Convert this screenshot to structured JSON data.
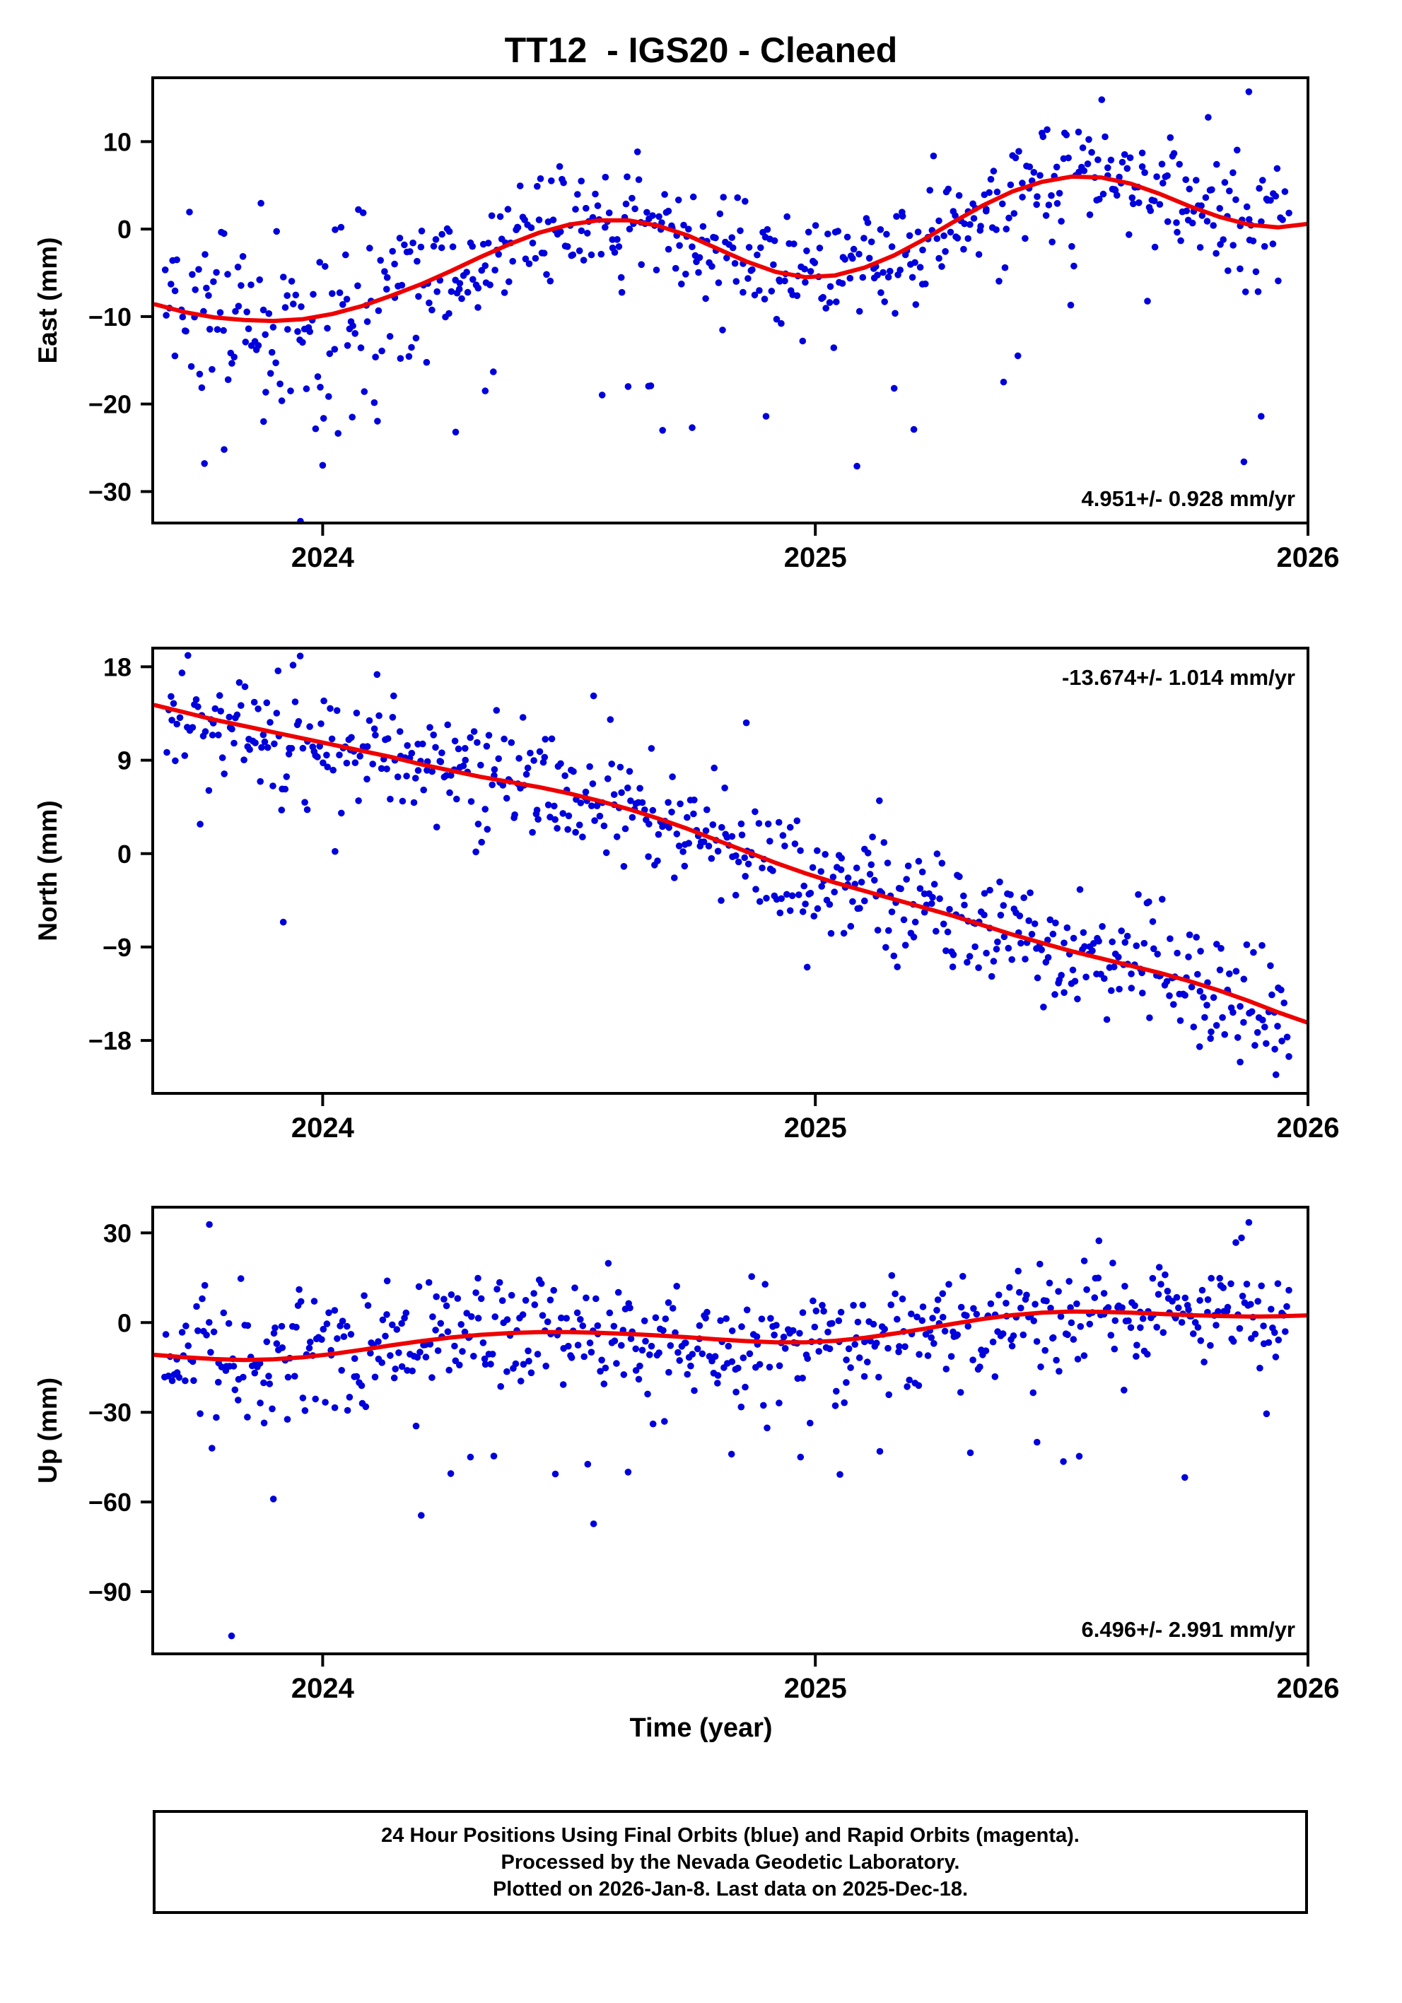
{
  "title": "TT12  - IGS20 - Cleaned",
  "xlabel": "Time (year)",
  "footer": {
    "line1": "24 Hour Positions Using Final Orbits (blue) and Rapid Orbits (magenta).",
    "line2": "Processed by the Nevada Geodetic Laboratory.",
    "line3": "Plotted on 2026-Jan-8. Last data on 2025-Dec-18."
  },
  "colors": {
    "points": "#0000dd",
    "trend": "#ee0000",
    "frame": "#000000",
    "background": "#ffffff"
  },
  "chart_data": [
    {
      "type": "scatter",
      "name": "east",
      "ylabel": "East (mm)",
      "slope_label": "4.951+/- 0.928 mm/yr",
      "annot_pos": "bottom",
      "xlim": [
        2023.655,
        2026.0
      ],
      "ylim": [
        -33.6,
        17.3
      ],
      "xticks": [
        2024,
        2025,
        2026
      ],
      "xtick_labels": [
        "2024",
        "2025",
        "2026"
      ],
      "yticks": [
        -30,
        -20,
        -10,
        0,
        10
      ],
      "ytick_labels": [
        "−30",
        "−20",
        "−10",
        "0",
        "10"
      ],
      "grid": false,
      "trend": {
        "x": [
          2023.66,
          2023.72,
          2023.78,
          2023.84,
          2023.9,
          2023.96,
          2024.02,
          2024.08,
          2024.14,
          2024.2,
          2024.26,
          2024.32,
          2024.38,
          2024.44,
          2024.5,
          2024.56,
          2024.62,
          2024.68,
          2024.74,
          2024.8,
          2024.86,
          2024.92,
          2024.98,
          2025.04,
          2025.1,
          2025.16,
          2025.22,
          2025.28,
          2025.34,
          2025.4,
          2025.46,
          2025.52,
          2025.58,
          2025.64,
          2025.7,
          2025.76,
          2025.82,
          2025.88,
          2025.94,
          2026.0
        ],
        "y": [
          -8.6,
          -9.5,
          -10.1,
          -10.4,
          -10.5,
          -10.3,
          -9.7,
          -8.8,
          -7.6,
          -6.3,
          -4.8,
          -3.2,
          -1.7,
          -0.4,
          0.5,
          1.0,
          1.0,
          0.4,
          -0.7,
          -2.2,
          -3.7,
          -4.9,
          -5.5,
          -5.3,
          -4.4,
          -3.0,
          -1.2,
          0.8,
          2.7,
          4.3,
          5.4,
          6.0,
          5.9,
          5.2,
          4.0,
          2.6,
          1.4,
          0.5,
          0.2,
          0.6
        ]
      },
      "scatter_model": {
        "seed": 42,
        "n": 620,
        "x_start": 2023.68,
        "x_end": 2025.96,
        "sigma": 3.1,
        "sigma_segments": [
          [
            2023.66,
            2024.2,
            1.8
          ],
          [
            2025.82,
            2025.97,
            1.7
          ]
        ],
        "neg_outlier_rate": 0.05,
        "neg_outlier_range": [
          -20,
          -5
        ],
        "pos_outlier_rate": 0.01,
        "pos_outlier_range": [
          4,
          9
        ]
      },
      "extra_points": [
        [
          2023.955,
          -33.4
        ],
        [
          2024.0,
          -27.0
        ],
        [
          2023.76,
          -26.8
        ],
        [
          2023.8,
          -25.2
        ],
        [
          2023.88,
          -22.0
        ],
        [
          2024.06,
          -21.5
        ],
        [
          2024.27,
          -23.2
        ],
        [
          2024.33,
          -18.5
        ],
        [
          2024.62,
          -18.0
        ],
        [
          2024.69,
          -23.0
        ],
        [
          2024.75,
          -22.7
        ],
        [
          2024.9,
          -21.4
        ],
        [
          2025.16,
          -18.2
        ],
        [
          2025.2,
          -22.9
        ],
        [
          2025.87,
          -26.6
        ],
        [
          2025.905,
          -21.4
        ],
        [
          2025.88,
          15.7
        ],
        [
          2023.7,
          -14.5
        ]
      ]
    },
    {
      "type": "scatter",
      "name": "north",
      "ylabel": "North (mm)",
      "slope_label": "-13.674+/- 1.014 mm/yr",
      "annot_pos": "top",
      "xlim": [
        2023.655,
        2026.0
      ],
      "ylim": [
        -23.1,
        19.8
      ],
      "xticks": [
        2024,
        2025,
        2026
      ],
      "xtick_labels": [
        "2024",
        "2025",
        "2026"
      ],
      "yticks": [
        -18,
        -9,
        0,
        9,
        18
      ],
      "ytick_labels": [
        "−18",
        "−9",
        "0",
        "9",
        "18"
      ],
      "grid": false,
      "trend": {
        "x": [
          2023.66,
          2023.72,
          2023.78,
          2023.84,
          2023.9,
          2023.96,
          2024.02,
          2024.08,
          2024.14,
          2024.2,
          2024.26,
          2024.32,
          2024.38,
          2024.44,
          2024.5,
          2024.56,
          2024.62,
          2024.68,
          2024.74,
          2024.8,
          2024.86,
          2024.92,
          2024.98,
          2025.04,
          2025.1,
          2025.16,
          2025.22,
          2025.28,
          2025.34,
          2025.4,
          2025.46,
          2025.52,
          2025.58,
          2025.64,
          2025.7,
          2025.76,
          2025.82,
          2025.88,
          2025.94,
          2026.0
        ],
        "y": [
          14.3,
          13.6,
          12.9,
          12.3,
          11.7,
          11.1,
          10.5,
          9.9,
          9.3,
          8.6,
          8.0,
          7.4,
          6.9,
          6.4,
          5.8,
          5.1,
          4.3,
          3.4,
          2.4,
          1.3,
          0.2,
          -0.9,
          -1.9,
          -2.8,
          -3.6,
          -4.4,
          -5.2,
          -6.0,
          -6.9,
          -7.8,
          -8.6,
          -9.4,
          -10.1,
          -10.8,
          -11.5,
          -12.3,
          -13.2,
          -14.2,
          -15.3,
          -16.3
        ]
      },
      "scatter_model": {
        "seed": 7,
        "n": 620,
        "x_start": 2023.68,
        "x_end": 2025.96,
        "sigma": 2.5,
        "sigma_segments": [
          [
            2023.66,
            2024.05,
            1.3
          ]
        ],
        "neg_outlier_rate": 0.015,
        "neg_outlier_range": [
          -8,
          -3
        ],
        "pos_outlier_rate": 0.01,
        "pos_outlier_range": [
          3,
          7
        ]
      },
      "extra_points": [
        [
          2025.78,
          -18.6
        ],
        [
          2025.935,
          -21.3
        ],
        [
          2023.92,
          -6.6
        ],
        [
          2024.55,
          15.2
        ],
        [
          2025.13,
          5.1
        ],
        [
          2024.86,
          12.6
        ]
      ]
    },
    {
      "type": "scatter",
      "name": "up",
      "ylabel": "Up (mm)",
      "slope_label": "6.496+/- 2.991 mm/yr",
      "annot_pos": "bottom",
      "xlim": [
        2023.655,
        2026.0
      ],
      "ylim": [
        -110.8,
        38.6
      ],
      "xticks": [
        2024,
        2025,
        2026
      ],
      "xtick_labels": [
        "2024",
        "2025",
        "2026"
      ],
      "yticks": [
        -90,
        -60,
        -30,
        0,
        30
      ],
      "ytick_labels": [
        "−90",
        "−60",
        "−30",
        "0",
        "30"
      ],
      "grid": false,
      "trend": {
        "x": [
          2023.66,
          2023.72,
          2023.78,
          2023.84,
          2023.9,
          2023.96,
          2024.02,
          2024.08,
          2024.14,
          2024.2,
          2024.26,
          2024.32,
          2024.38,
          2024.44,
          2024.5,
          2024.56,
          2024.62,
          2024.68,
          2024.74,
          2024.8,
          2024.86,
          2024.92,
          2024.98,
          2025.04,
          2025.1,
          2025.16,
          2025.22,
          2025.28,
          2025.34,
          2025.4,
          2025.46,
          2025.52,
          2025.58,
          2025.64,
          2025.7,
          2025.76,
          2025.82,
          2025.88,
          2025.94,
          2026.0
        ],
        "y": [
          -10.8,
          -11.6,
          -12.2,
          -12.5,
          -12.3,
          -11.6,
          -10.5,
          -9.1,
          -7.6,
          -6.2,
          -5.0,
          -4.1,
          -3.5,
          -3.2,
          -3.2,
          -3.4,
          -3.8,
          -4.3,
          -4.9,
          -5.6,
          -6.2,
          -6.6,
          -6.6,
          -6.1,
          -5.1,
          -3.7,
          -2.1,
          -0.4,
          1.2,
          2.5,
          3.3,
          3.7,
          3.6,
          3.3,
          2.9,
          2.5,
          2.2,
          2.0,
          2.1,
          2.4
        ]
      },
      "scatter_model": {
        "seed": 99,
        "n": 620,
        "x_start": 2023.68,
        "x_end": 2025.96,
        "sigma": 9,
        "sigma_segments": [
          [
            2023.66,
            2024.1,
            1.25
          ]
        ],
        "neg_outlier_rate": 0.035,
        "neg_outlier_range": [
          -45,
          -10
        ],
        "pos_outlier_rate": 0.012,
        "pos_outlier_range": [
          8,
          16
        ]
      },
      "extra_points": [
        [
          2023.815,
          -104.8
        ],
        [
          2023.9,
          -59.0
        ],
        [
          2024.2,
          -64.5
        ],
        [
          2024.26,
          -50.5
        ],
        [
          2024.3,
          -45.0
        ],
        [
          2024.55,
          -67.3
        ],
        [
          2024.62,
          -50.0
        ],
        [
          2024.83,
          -44.0
        ],
        [
          2024.97,
          -45.0
        ],
        [
          2025.05,
          -50.8
        ],
        [
          2025.45,
          -40.0
        ],
        [
          2025.75,
          -51.8
        ],
        [
          2023.77,
          32.8
        ],
        [
          2025.88,
          33.5
        ]
      ]
    }
  ]
}
